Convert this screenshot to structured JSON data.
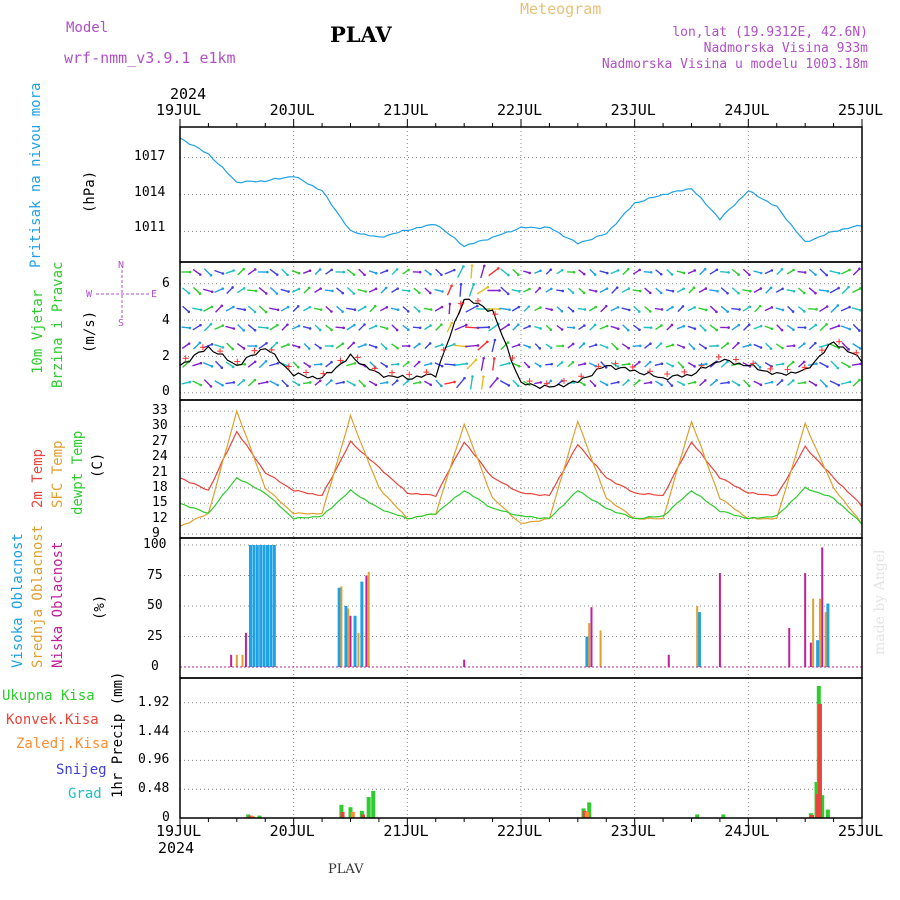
{
  "header": {
    "model_label": "Model",
    "model_name": "wrf-nmm_v3.9.1 e1km",
    "station": "PLAV",
    "title": "Meteogram",
    "lonlat": "lon,lat (19.9312E, 42.6N)",
    "altitude": "Nadmorska Visina 933m",
    "model_altitude": "Nadmorska Visina u modelu 1003.18m"
  },
  "footer": {
    "station": "PLAV",
    "credit": "made by Angel"
  },
  "colors": {
    "pressure": "#1fa1e6",
    "wind_speed": "#000000",
    "gust_marker": "#ff3030",
    "temp2m": "#e8453c",
    "sfc_temp": "#e0a030",
    "dewpt": "#2ecc2e",
    "high_cloud": "#1fa1e6",
    "mid_cloud": "#e0a030",
    "low_cloud": "#c0209a",
    "total_precip": "#2ecc2e",
    "conv_precip": "#e8453c",
    "frz_precip": "#ff8c30",
    "snow": "#4040e0",
    "hail": "#20c0c0",
    "label_purple": "#b050c8",
    "title_orange": "#e8c07a"
  },
  "x_axis": {
    "year": "2024",
    "ticks": [
      "19JUL",
      "20JUL",
      "21JUL",
      "22JUL",
      "23JUL",
      "24JUL",
      "25JUL"
    ]
  },
  "panels": {
    "pressure": {
      "label": "Pritisak na nivou mora",
      "unit": "(hPa)",
      "ticks": [
        "1017",
        "1014",
        "1011"
      ]
    },
    "wind": {
      "label_1": "10m Vjetar",
      "label_2": "Brzina i Pravac",
      "unit": "(m/s)",
      "ticks": [
        "6",
        "4",
        "2",
        "0"
      ],
      "compass": {
        "n": "N",
        "s": "S",
        "e": "E",
        "w": "W"
      }
    },
    "temp": {
      "label_1": "2m Temp",
      "label_2": "SFC Temp",
      "label_3": "dewpt Temp",
      "unit": "(C)",
      "ticks": [
        "33",
        "30",
        "27",
        "24",
        "21",
        "18",
        "15",
        "12",
        "9"
      ]
    },
    "cloud": {
      "label_1": "Visoka Oblacnost",
      "label_2": "Srednja Oblacnost",
      "label_3": "Niska Oblacnost",
      "unit": "(%)",
      "ticks": [
        "100",
        "75",
        "50",
        "25",
        "0"
      ]
    },
    "precip": {
      "label": "1hr Precip (mm)",
      "ticks": [
        "1.92",
        "1.44",
        "0.96",
        "0.48",
        "0"
      ],
      "legend": [
        "Ukupna Kisa",
        "Konvek.Kisa",
        "Zaledj.Kisa",
        "Snijeg",
        "Grad"
      ]
    }
  },
  "chart_data": [
    {
      "type": "line",
      "title": "Pritisak na nivou mora",
      "ylabel": "(hPa)",
      "ylim": [
        1008.5,
        1019.5
      ],
      "x_days": [
        0,
        0.25,
        0.5,
        0.75,
        1,
        1.25,
        1.5,
        1.75,
        2,
        2.25,
        2.5,
        2.75,
        3,
        3.25,
        3.5,
        3.75,
        4,
        4.25,
        4.5,
        4.75,
        5,
        5.25,
        5.5,
        5.75,
        6
      ],
      "series": [
        {
          "values": [
            1018.6,
            1017.3,
            1015.0,
            1015.1,
            1015.5,
            1014.3,
            1011.0,
            1010.5,
            1011.1,
            1011.6,
            1009.8,
            1010.5,
            1011.3,
            1011.3,
            1010.0,
            1010.8,
            1013.3,
            1014.0,
            1014.5,
            1012.0,
            1014.3,
            1013.0,
            1010.1,
            1011.0,
            1011.5
          ]
        }
      ]
    },
    {
      "type": "line",
      "title": "10m Vjetar Brzina i Pravac",
      "ylabel": "(m/s)",
      "ylim": [
        -0.4,
        7.2
      ],
      "x_days": [
        0,
        0.25,
        0.5,
        0.75,
        1,
        1.25,
        1.5,
        1.75,
        2,
        2.25,
        2.5,
        2.75,
        3,
        3.25,
        3.5,
        3.75,
        4,
        4.25,
        4.5,
        4.75,
        5,
        5.25,
        5.5,
        5.75,
        6
      ],
      "series": [
        {
          "values": [
            1.5,
            2.5,
            1.5,
            2.5,
            1.0,
            0.8,
            2.0,
            1.0,
            0.8,
            1.0,
            5.2,
            4.5,
            0.5,
            0.3,
            0.6,
            1.5,
            1.2,
            0.8,
            1.0,
            1.8,
            1.5,
            1.0,
            1.2,
            2.8,
            1.8
          ]
        }
      ]
    },
    {
      "type": "line",
      "title": "2m Temp / SFC Temp / dewpt Temp",
      "ylabel": "(C)",
      "ylim": [
        9,
        34
      ],
      "x_days": [
        0,
        0.25,
        0.5,
        0.75,
        1,
        1.25,
        1.5,
        1.75,
        2,
        2.25,
        2.5,
        2.75,
        3,
        3.25,
        3.5,
        3.75,
        4,
        4.25,
        4.5,
        4.75,
        5,
        5.25,
        5.5,
        5.75,
        6
      ],
      "series": [
        {
          "name": "2m Temp",
          "values": [
            20,
            17.5,
            29,
            21,
            17.5,
            16.5,
            27,
            22,
            17,
            16.5,
            27,
            20,
            17,
            16.5,
            26.5,
            20,
            17,
            16.5,
            27,
            20,
            17,
            16.5,
            26,
            20,
            14.5
          ]
        },
        {
          "name": "SFC Temp",
          "values": [
            10.5,
            13,
            33,
            18,
            13,
            13,
            32,
            18,
            12,
            13,
            30.5,
            16,
            11,
            12,
            31,
            16,
            12,
            12,
            31,
            16,
            12,
            12,
            30.5,
            18,
            11
          ]
        },
        {
          "name": "dewpt Temp",
          "values": [
            15,
            13,
            20,
            17,
            12,
            12.5,
            17.5,
            14,
            12,
            13,
            17.5,
            14,
            12.5,
            12,
            17.5,
            14,
            12,
            12.5,
            17.5,
            13.5,
            12,
            12.5,
            18,
            16,
            11
          ]
        }
      ]
    },
    {
      "type": "bar",
      "title": "Oblacnost",
      "ylabel": "(%)",
      "ylim": [
        0,
        100
      ],
      "series": [
        {
          "name": "Visoka Oblacnost",
          "x_days": [
            0.62,
            0.65,
            0.68,
            0.71,
            0.74,
            0.77,
            0.8,
            0.83,
            1.4,
            1.46,
            1.54,
            1.6,
            3.58,
            4.57,
            5.61,
            5.7
          ],
          "values": [
            100,
            100,
            100,
            100,
            100,
            100,
            100,
            100,
            65,
            50,
            42,
            70,
            25,
            45,
            22,
            52
          ]
        },
        {
          "name": "Srednja Oblacnost",
          "x_days": [
            0.5,
            0.55,
            1.42,
            1.48,
            1.57,
            1.66,
            3.6,
            3.7,
            4.55,
            5.57,
            5.63,
            5.68
          ],
          "values": [
            10,
            10,
            66,
            48,
            28,
            78,
            36,
            30,
            50,
            56,
            56,
            45
          ]
        },
        {
          "name": "Niska Oblacnost",
          "x_days": [
            0.45,
            0.58,
            1.5,
            1.64,
            2.5,
            3.62,
            4.3,
            4.75,
            5.36,
            5.5,
            5.55,
            5.65
          ],
          "values": [
            10,
            28,
            42,
            75,
            6,
            49,
            10,
            77,
            32,
            77,
            20,
            98
          ]
        }
      ]
    },
    {
      "type": "bar",
      "title": "1hr Precip",
      "ylabel": "(mm)",
      "ylim": [
        0,
        2.2
      ],
      "series": [
        {
          "name": "Ukupna Kisa",
          "x_days": [
            0.6,
            0.7,
            1.42,
            1.5,
            1.6,
            1.66,
            1.7,
            3.55,
            3.6,
            4.55,
            4.78,
            5.55,
            5.6,
            5.62,
            5.65,
            5.7
          ],
          "values": [
            0.06,
            0.04,
            0.22,
            0.18,
            0.12,
            0.35,
            0.45,
            0.16,
            0.26,
            0.06,
            0.06,
            0.08,
            0.6,
            2.2,
            0.38,
            0.14
          ]
        },
        {
          "name": "Konvek.Kisa",
          "x_days": [
            0.62,
            1.43,
            1.61,
            3.56,
            5.56,
            5.61,
            5.63
          ],
          "values": [
            0.04,
            0.1,
            0.06,
            0.12,
            0.05,
            0.4,
            1.9
          ]
        },
        {
          "name": "Zaledj.Kisa",
          "x_days": [
            0.64,
            1.52,
            3.58
          ],
          "values": [
            0.03,
            0.1,
            0.1
          ]
        }
      ]
    }
  ]
}
